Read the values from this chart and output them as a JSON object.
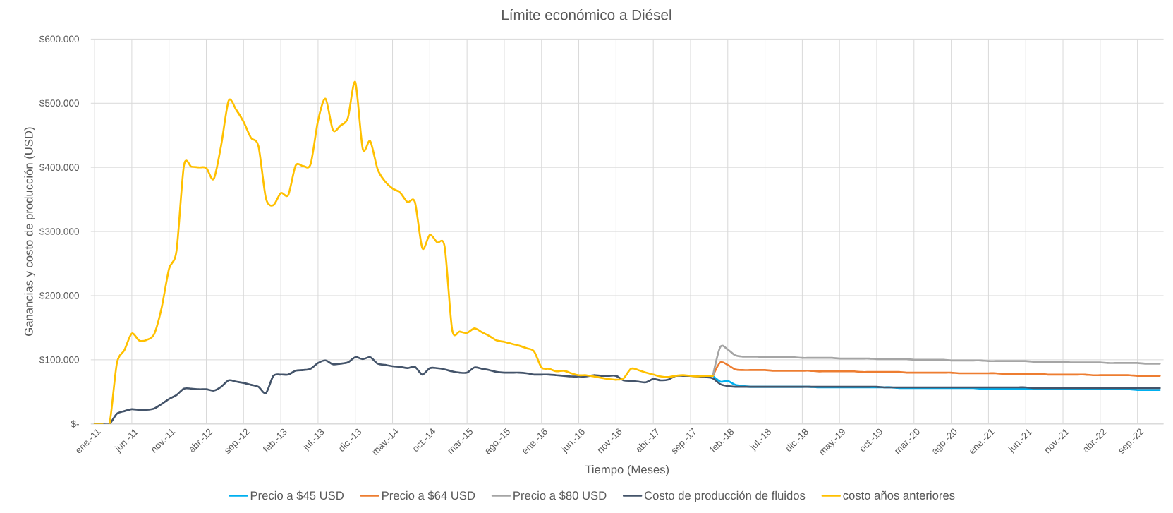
{
  "chart_data": {
    "type": "line",
    "title": "Límite económico a Diésel",
    "xlabel": "Tiempo (Meses)",
    "ylabel": "Ganancias y costo de producción (USD)",
    "categories": [
      "ene.-11",
      null,
      null,
      null,
      null,
      "jun.-11",
      null,
      null,
      null,
      null,
      "nov.-11",
      null,
      null,
      null,
      null,
      "abr.-12",
      null,
      null,
      null,
      null,
      "sep.-12",
      null,
      null,
      null,
      null,
      "feb.-13",
      null,
      null,
      null,
      null,
      "jul.-13",
      null,
      null,
      null,
      null,
      "dic.-13",
      null,
      null,
      null,
      null,
      "may.-14",
      null,
      null,
      null,
      null,
      "oct.-14",
      null,
      null,
      null,
      null,
      "mar.-15",
      null,
      null,
      null,
      null,
      "ago.-15",
      null,
      null,
      null,
      null,
      "ene.-16",
      null,
      null,
      null,
      null,
      "jun.-16",
      null,
      null,
      null,
      null,
      "nov.-16",
      null,
      null,
      null,
      null,
      "abr.-17",
      null,
      null,
      null,
      null,
      "sep.-17",
      null,
      null,
      null,
      null,
      "feb.-18",
      null,
      null,
      null,
      null,
      "jul.-18",
      null,
      null,
      null,
      null,
      "dic.-18",
      null,
      null,
      null,
      null,
      "may.-19",
      null,
      null,
      null,
      null,
      "oct.-19",
      null,
      null,
      null,
      null,
      "mar.-20",
      null,
      null,
      null,
      null,
      "ago.-20",
      null,
      null,
      null,
      null,
      "ene.-21",
      null,
      null,
      null,
      null,
      "jun.-21",
      null,
      null,
      null,
      null,
      "nov.-21",
      null,
      null,
      null,
      null,
      "abr.-22",
      null,
      null,
      null,
      null,
      "sep.-22",
      null,
      null,
      null
    ],
    "series": [
      {
        "name": "Precio a $45 USD",
        "color": "#00b0f0",
        "values": [
          null,
          null,
          null,
          null,
          null,
          null,
          null,
          null,
          null,
          null,
          null,
          null,
          null,
          null,
          null,
          null,
          null,
          null,
          null,
          null,
          null,
          null,
          null,
          null,
          null,
          null,
          null,
          null,
          null,
          null,
          null,
          null,
          null,
          null,
          null,
          null,
          null,
          null,
          null,
          null,
          null,
          null,
          null,
          null,
          null,
          null,
          null,
          null,
          null,
          null,
          null,
          null,
          null,
          null,
          null,
          null,
          null,
          null,
          null,
          null,
          null,
          null,
          null,
          null,
          null,
          null,
          null,
          null,
          null,
          null,
          null,
          null,
          null,
          null,
          null,
          null,
          null,
          null,
          null,
          null,
          null,
          null,
          null,
          75000,
          66000,
          67000,
          61000,
          59000,
          58000,
          58000,
          58000,
          58000,
          58000,
          58000,
          58000,
          58000,
          58000,
          57000,
          57000,
          57000,
          57000,
          57000,
          57000,
          57000,
          57000,
          57000,
          57000,
          57000,
          56000,
          56000,
          56000,
          56000,
          56000,
          56000,
          56000,
          56000,
          56000,
          56000,
          56000,
          55000,
          55000,
          55000,
          55000,
          55000,
          55000,
          55000,
          55000,
          55000,
          55000,
          55000,
          54000,
          54000,
          54000,
          54000,
          54000,
          54000,
          54000,
          54000,
          54000,
          54000,
          53000,
          53000,
          53000,
          53000
        ]
      },
      {
        "name": "Precio a $64 USD",
        "color": "#ed7d31",
        "values": [
          null,
          null,
          null,
          null,
          null,
          null,
          null,
          null,
          null,
          null,
          null,
          null,
          null,
          null,
          null,
          null,
          null,
          null,
          null,
          null,
          null,
          null,
          null,
          null,
          null,
          null,
          null,
          null,
          null,
          null,
          null,
          null,
          null,
          null,
          null,
          null,
          null,
          null,
          null,
          null,
          null,
          null,
          null,
          null,
          null,
          null,
          null,
          null,
          null,
          null,
          null,
          null,
          null,
          null,
          null,
          null,
          null,
          null,
          null,
          null,
          null,
          null,
          null,
          null,
          null,
          null,
          null,
          null,
          null,
          null,
          null,
          null,
          null,
          null,
          null,
          null,
          null,
          null,
          null,
          null,
          null,
          null,
          null,
          75000,
          96000,
          92000,
          85000,
          84000,
          84000,
          84000,
          84000,
          83000,
          83000,
          83000,
          83000,
          83000,
          83000,
          82000,
          82000,
          82000,
          82000,
          82000,
          82000,
          81000,
          81000,
          81000,
          81000,
          81000,
          81000,
          80000,
          80000,
          80000,
          80000,
          80000,
          80000,
          80000,
          79000,
          79000,
          79000,
          79000,
          79000,
          79000,
          78000,
          78000,
          78000,
          78000,
          78000,
          78000,
          77000,
          77000,
          77000,
          77000,
          77000,
          77000,
          76000,
          76000,
          76000,
          76000,
          76000,
          76000,
          75000,
          75000,
          75000,
          75000
        ]
      },
      {
        "name": "Precio a $80 USD",
        "color": "#a5a5a5",
        "values": [
          null,
          null,
          null,
          null,
          null,
          null,
          null,
          null,
          null,
          null,
          null,
          null,
          null,
          null,
          null,
          null,
          null,
          null,
          null,
          null,
          null,
          null,
          null,
          null,
          null,
          null,
          null,
          null,
          null,
          null,
          null,
          null,
          null,
          null,
          null,
          null,
          null,
          null,
          null,
          null,
          null,
          null,
          null,
          null,
          null,
          null,
          null,
          null,
          null,
          null,
          null,
          null,
          null,
          null,
          null,
          null,
          null,
          null,
          null,
          null,
          null,
          null,
          null,
          null,
          null,
          null,
          null,
          null,
          null,
          null,
          null,
          null,
          null,
          null,
          null,
          null,
          null,
          null,
          null,
          null,
          null,
          null,
          null,
          75000,
          120000,
          116000,
          107000,
          105000,
          105000,
          105000,
          104000,
          104000,
          104000,
          104000,
          104000,
          103000,
          103000,
          103000,
          103000,
          103000,
          102000,
          102000,
          102000,
          102000,
          102000,
          101000,
          101000,
          101000,
          101000,
          101000,
          100000,
          100000,
          100000,
          100000,
          100000,
          99000,
          99000,
          99000,
          99000,
          99000,
          98000,
          98000,
          98000,
          98000,
          98000,
          98000,
          97000,
          97000,
          97000,
          97000,
          97000,
          96000,
          96000,
          96000,
          96000,
          96000,
          95000,
          95000,
          95000,
          95000,
          95000,
          94000,
          94000,
          94000
        ]
      },
      {
        "name": "Costo de producción de fluidos",
        "color": "#44546a",
        "values": [
          0,
          0,
          0,
          16000,
          20000,
          23000,
          22000,
          22000,
          24000,
          31000,
          39000,
          45000,
          55000,
          55000,
          54000,
          54000,
          52000,
          58000,
          68000,
          66000,
          64000,
          61000,
          58000,
          48000,
          75000,
          77000,
          77000,
          83000,
          84000,
          86000,
          95000,
          99000,
          93000,
          94000,
          96000,
          104000,
          101000,
          104000,
          94000,
          92000,
          90000,
          89000,
          87000,
          89000,
          77000,
          87000,
          87000,
          85000,
          82000,
          80000,
          80000,
          88000,
          86000,
          84000,
          81000,
          80000,
          80000,
          80000,
          79000,
          77000,
          77000,
          77000,
          76000,
          75000,
          74000,
          74000,
          74000,
          76000,
          75000,
          75000,
          75000,
          68000,
          67000,
          66000,
          65000,
          70000,
          68000,
          69000,
          75000,
          75000,
          75000,
          74000,
          73000,
          71000,
          62000,
          59000,
          58000,
          58000,
          58000,
          58000,
          58000,
          58000,
          58000,
          58000,
          58000,
          58000,
          58000,
          58000,
          58000,
          58000,
          58000,
          58000,
          58000,
          58000,
          58000,
          58000,
          57000,
          57000,
          57000,
          57000,
          57000,
          57000,
          57000,
          57000,
          57000,
          57000,
          57000,
          57000,
          57000,
          57000,
          57000,
          57000,
          57000,
          57000,
          57000,
          57000,
          56000,
          56000,
          56000,
          56000,
          56000,
          56000,
          56000,
          56000,
          56000,
          56000,
          56000,
          56000,
          56000,
          56000,
          56000,
          56000,
          56000,
          56000
        ]
      },
      {
        "name": "costo años anteriores",
        "color": "#ffc000",
        "values": [
          0,
          0,
          0,
          95000,
          115000,
          141000,
          130000,
          131000,
          140000,
          181000,
          242000,
          270000,
          403000,
          401000,
          400000,
          399000,
          382000,
          435000,
          504000,
          490000,
          471000,
          446000,
          433000,
          352000,
          341000,
          360000,
          357000,
          403000,
          402000,
          405000,
          473000,
          507000,
          458000,
          465000,
          477000,
          533000,
          429000,
          441000,
          397000,
          378000,
          367000,
          361000,
          346000,
          346000,
          274000,
          295000,
          283000,
          276000,
          147000,
          144000,
          142000,
          149000,
          143000,
          137000,
          130000,
          128000,
          125000,
          122000,
          118000,
          113000,
          88000,
          86000,
          82000,
          83000,
          79000,
          76000,
          76000,
          74000,
          72000,
          70000,
          69000,
          71000,
          86000,
          84000,
          80000,
          77000,
          74000,
          73000,
          75000,
          76000,
          75000,
          74000,
          75000,
          75000,
          null,
          null,
          null,
          null,
          null,
          null,
          null,
          null,
          null,
          null,
          null,
          null,
          null,
          null,
          null,
          null,
          null,
          null,
          null,
          null,
          null,
          null,
          null,
          null,
          null,
          null,
          null,
          null,
          null,
          null,
          null,
          null,
          null,
          null,
          null,
          null,
          null,
          null,
          null,
          null,
          null,
          null,
          null,
          null,
          null,
          null,
          null,
          null,
          null,
          null,
          null,
          null,
          null,
          null,
          null,
          null,
          null,
          null,
          null,
          null
        ]
      }
    ],
    "ylim": [
      0,
      600000
    ],
    "yticks": [
      {
        "value": 0,
        "label": "$-"
      },
      {
        "value": 100000,
        "label": "$100.000"
      },
      {
        "value": 200000,
        "label": "$200.000"
      },
      {
        "value": 300000,
        "label": "$300.000"
      },
      {
        "value": 400000,
        "label": "$400.000"
      },
      {
        "value": 500000,
        "label": "$500.000"
      },
      {
        "value": 600000,
        "label": "$600.000"
      }
    ],
    "grid": true,
    "legend": "bottom"
  }
}
